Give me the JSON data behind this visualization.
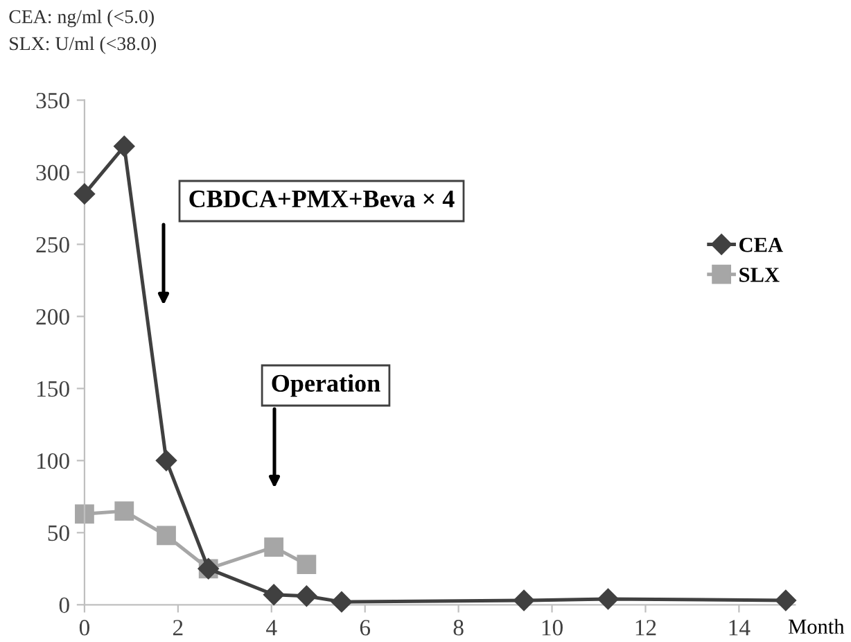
{
  "chart_data": {
    "type": "line",
    "x": [
      0,
      0.85,
      1.75,
      2.65,
      4.05,
      4.75,
      5.5,
      9.4,
      11.2,
      15
    ],
    "series": [
      {
        "name": "CEA",
        "color": "#404040",
        "marker": "diamond",
        "values": [
          285,
          318,
          100,
          25,
          7,
          6,
          2,
          3,
          4,
          3
        ]
      },
      {
        "name": "SLX",
        "color": "#a6a6a6",
        "marker": "square",
        "x": [
          0,
          0.85,
          1.75,
          2.65,
          4.05,
          4.75
        ],
        "values": [
          63,
          65,
          48,
          25,
          40,
          28
        ]
      }
    ],
    "xlabel": "Month",
    "xlim": [
      0,
      15.2
    ],
    "xticks": [
      0,
      2,
      4,
      6,
      8,
      10,
      12,
      14
    ],
    "ylim": [
      0,
      350
    ],
    "yticks": [
      0,
      50,
      100,
      150,
      200,
      250,
      300,
      350
    ],
    "grid": false,
    "legend": "right",
    "line_style": "solid",
    "annotations": [
      "CBDCA+PMX+Beva × 4",
      "Operation",
      "CEA: ng/ml (<5.0)",
      "SLX: U/ml (<38.0)"
    ]
  }
}
